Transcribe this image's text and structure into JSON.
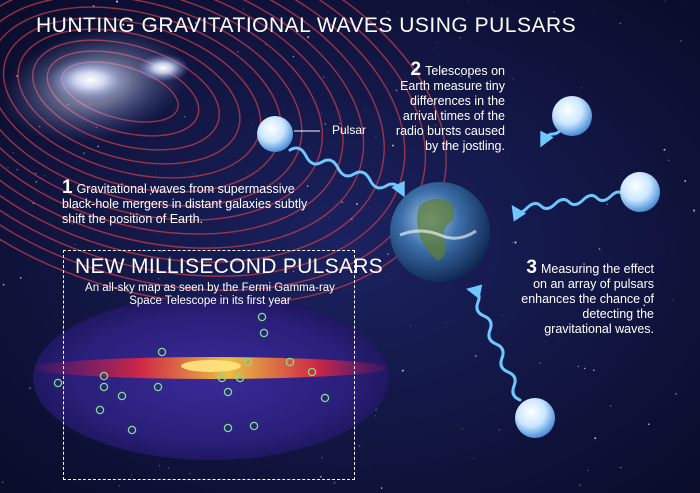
{
  "title": "HUNTING GRAVITATIONAL WAVES USING PULSARS",
  "steps": [
    {
      "number": "1",
      "text": "Gravitational waves from supermassive black-hole mergers in distant galaxies subtly shift the position of Earth."
    },
    {
      "number": "2",
      "text": "Telescopes on Earth measure tiny differences in the arrival times of the radio bursts caused by the jostling."
    },
    {
      "number": "3",
      "text": "Measuring the effect on an array of pulsars enhances the chance of detecting the gravitational waves."
    }
  ],
  "pulsar_label": "Pulsar",
  "inset": {
    "title": "NEW MILLISECOND PULSARS",
    "subtitle": "An all-sky map as seen by the Fermi Gamma-ray Space Telescope in its first year"
  },
  "colors": {
    "background": "#0a0d2e",
    "wave_rings": "#c0394a",
    "wave_beam": "#6fc7ff",
    "pulsar_marker": "#7fe08a",
    "galactic_plane": "#ffcf3a"
  }
}
